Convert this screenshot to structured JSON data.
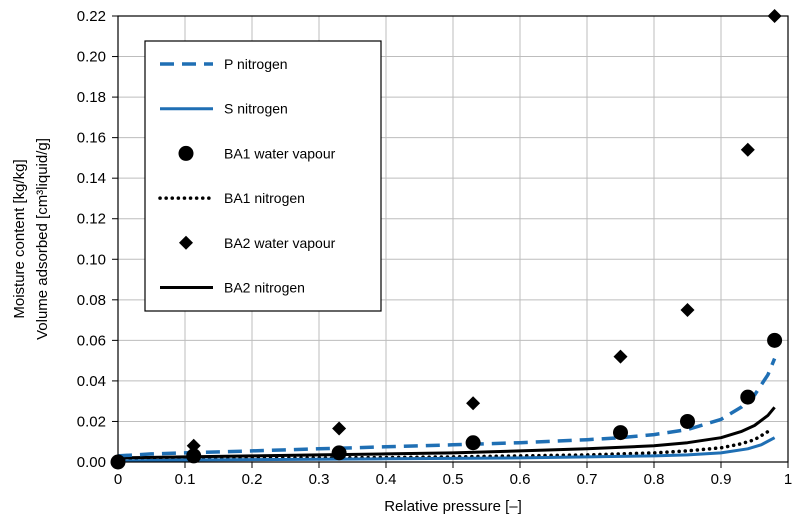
{
  "chart_data": {
    "type": "line",
    "title": "",
    "xlabel": "Relative pressure [–]",
    "ylabel": [
      "Moisture content [kg/kg]",
      "Volume adsorbed [cm³liquid/g]"
    ],
    "xlim": [
      0,
      1
    ],
    "ylim": [
      0,
      0.22
    ],
    "x_ticks": [
      "0",
      "0.1",
      "0.2",
      "0.3",
      "0.4",
      "0.5",
      "0.6",
      "0.7",
      "0.8",
      "0.9",
      "1"
    ],
    "y_ticks": [
      "0.00",
      "0.02",
      "0.04",
      "0.06",
      "0.08",
      "0.10",
      "0.12",
      "0.14",
      "0.16",
      "0.18",
      "0.20",
      "0.22"
    ],
    "grid": true,
    "legend_placement": "top-left",
    "series": [
      {
        "name": "P nitrogen",
        "style": "dashed",
        "color": "#1f6fb4",
        "x": [
          0.0,
          0.05,
          0.1,
          0.2,
          0.3,
          0.4,
          0.5,
          0.6,
          0.7,
          0.75,
          0.8,
          0.85,
          0.9,
          0.93,
          0.95,
          0.97,
          0.98
        ],
        "y": [
          0.003,
          0.004,
          0.0045,
          0.0055,
          0.0065,
          0.0075,
          0.0085,
          0.0095,
          0.011,
          0.012,
          0.0135,
          0.016,
          0.021,
          0.027,
          0.033,
          0.043,
          0.051
        ]
      },
      {
        "name": "S nitrogen",
        "style": "solid",
        "color": "#1f6fb4",
        "x": [
          0.0,
          0.1,
          0.2,
          0.3,
          0.4,
          0.5,
          0.6,
          0.7,
          0.8,
          0.85,
          0.9,
          0.94,
          0.96,
          0.98
        ],
        "y": [
          0.0005,
          0.001,
          0.0012,
          0.0014,
          0.0016,
          0.0018,
          0.002,
          0.0025,
          0.003,
          0.0035,
          0.0045,
          0.0065,
          0.0085,
          0.012
        ]
      },
      {
        "name": "BA1 water vapour",
        "style": "marker-circle",
        "color": "#000000",
        "x": [
          0.0,
          0.113,
          0.33,
          0.53,
          0.75,
          0.85,
          0.94,
          0.98
        ],
        "y": [
          0.0,
          0.003,
          0.0045,
          0.0095,
          0.0145,
          0.02,
          0.032,
          0.06
        ]
      },
      {
        "name": "BA1 nitrogen",
        "style": "dotted",
        "color": "#000000",
        "x": [
          0.0,
          0.1,
          0.2,
          0.3,
          0.4,
          0.5,
          0.6,
          0.7,
          0.8,
          0.85,
          0.9,
          0.93,
          0.95,
          0.97
        ],
        "y": [
          0.001,
          0.0015,
          0.0018,
          0.002,
          0.0022,
          0.0025,
          0.003,
          0.0035,
          0.0045,
          0.0055,
          0.007,
          0.009,
          0.011,
          0.015
        ]
      },
      {
        "name": "BA2 water vapour",
        "style": "marker-diamond",
        "color": "#000000",
        "x": [
          0.113,
          0.33,
          0.53,
          0.75,
          0.85,
          0.94,
          0.98
        ],
        "y": [
          0.008,
          0.0165,
          0.029,
          0.052,
          0.075,
          0.154,
          0.22
        ]
      },
      {
        "name": "BA2 nitrogen",
        "style": "solid",
        "color": "#000000",
        "x": [
          0.0,
          0.1,
          0.2,
          0.3,
          0.4,
          0.5,
          0.6,
          0.7,
          0.8,
          0.85,
          0.9,
          0.93,
          0.95,
          0.97,
          0.98
        ],
        "y": [
          0.002,
          0.0025,
          0.003,
          0.0035,
          0.004,
          0.0045,
          0.0055,
          0.0065,
          0.008,
          0.0095,
          0.012,
          0.015,
          0.018,
          0.023,
          0.027
        ]
      }
    ]
  }
}
